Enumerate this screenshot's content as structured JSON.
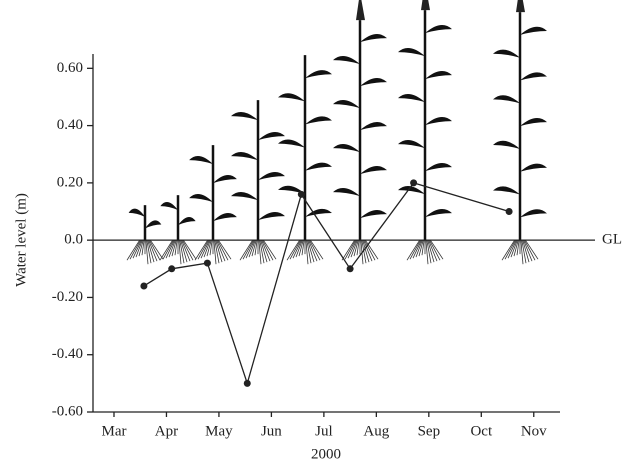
{
  "chart_data": {
    "type": "line",
    "x_label": "2000",
    "y_label": "Water level (m)",
    "annotation": "GL",
    "x": [
      3.57,
      4.1,
      4.78,
      5.54,
      6.57,
      7.5,
      8.71,
      10.53
    ],
    "values": [
      -0.16,
      -0.1,
      -0.08,
      -0.5,
      0.16,
      -0.1,
      0.2,
      0.1
    ],
    "color": "#222222",
    "xlim": [
      2.6,
      11.5
    ],
    "xticks": [
      {
        "value": 3,
        "label": "Mar"
      },
      {
        "value": 4,
        "label": "Apr"
      },
      {
        "value": 5,
        "label": "May"
      },
      {
        "value": 6,
        "label": "Jun"
      },
      {
        "value": 7,
        "label": "Jul"
      },
      {
        "value": 8,
        "label": "Aug"
      },
      {
        "value": 9,
        "label": "Sep"
      },
      {
        "value": 10,
        "label": "Oct"
      },
      {
        "value": 11,
        "label": "Nov"
      }
    ],
    "ylim": [
      -0.6,
      0.65
    ],
    "yticks": [
      {
        "value": -0.6,
        "label": "-0.60"
      },
      {
        "value": -0.4,
        "label": "-0.40"
      },
      {
        "value": -0.2,
        "label": "-0.20"
      },
      {
        "value": 0,
        "label": "0.0"
      },
      {
        "value": 0.2,
        "label": "0.20"
      },
      {
        "value": 0.4,
        "label": "0.40"
      },
      {
        "value": 0.6,
        "label": "0.60"
      }
    ],
    "grid": false
  }
}
